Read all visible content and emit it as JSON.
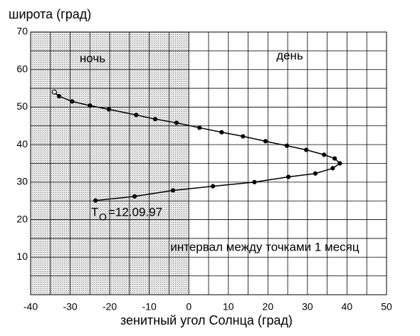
{
  "chart_data": {
    "type": "line",
    "y_label": "широта (град)",
    "x_label": "зенитный угол Солнца (град)",
    "xlim": [
      -40,
      50
    ],
    "ylim": [
      0,
      70
    ],
    "xticks": [
      -40,
      -30,
      -20,
      -10,
      0,
      10,
      20,
      30,
      40,
      50
    ],
    "yticks": [
      10,
      20,
      30,
      40,
      50,
      60,
      70
    ],
    "x_minor_ticks": [
      -35,
      -25,
      -15,
      -5,
      5,
      15,
      25,
      35,
      45
    ],
    "y_minor_ticks": [
      5,
      15,
      25,
      35,
      45,
      55,
      65
    ],
    "grid": true,
    "shaded_x": [
      -40,
      0
    ],
    "first_marker": "open",
    "x": [
      -34.0,
      -32.8,
      -29.5,
      -25.0,
      -20.2,
      -13.3,
      -8.5,
      -3.1,
      2.7,
      8.3,
      13.7,
      19.4,
      24.8,
      29.7,
      34.2,
      36.9,
      38.2,
      36.4,
      32.0,
      25.2,
      16.6,
      6.1,
      -4.0,
      -13.7,
      -23.6
    ],
    "series": [
      {
        "color": "#000000",
        "values": [
          54.0,
          52.9,
          51.5,
          50.4,
          49.4,
          47.9,
          46.8,
          45.8,
          44.5,
          43.3,
          42.2,
          40.9,
          39.7,
          38.6,
          37.3,
          36.3,
          35.0,
          33.7,
          32.3,
          31.4,
          30.0,
          28.9,
          27.8,
          26.2,
          25.1
        ]
      }
    ],
    "annotations": {
      "night": "ночь",
      "day": "день",
      "interval": "интервал между точками 1 месяц",
      "t0": {
        "symbol": "T",
        "subscript": "O",
        "text": "=12.09.97"
      }
    }
  }
}
